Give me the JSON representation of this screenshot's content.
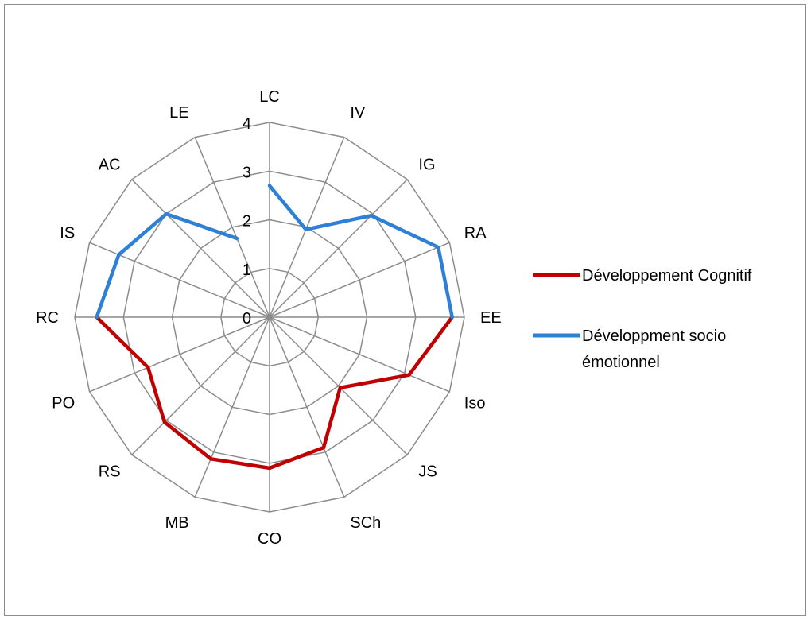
{
  "chart_data": {
    "type": "radar",
    "title": "",
    "categories": [
      "LC",
      "IV",
      "IG",
      "RA",
      "EE",
      "Iso",
      "JS",
      "SCh",
      "CO",
      "MB",
      "RS",
      "PO",
      "RC",
      "IS",
      "AC",
      "LE"
    ],
    "rlim": [
      0,
      4
    ],
    "ticks": [
      0,
      1,
      2,
      3,
      4
    ],
    "grid": true,
    "legend_position": "right",
    "series": [
      {
        "name": "Développement Cognitif",
        "color": "#c00000",
        "values": [
          null,
          null,
          null,
          null,
          3.75,
          3.1,
          2.05,
          2.9,
          3.1,
          3.15,
          3.05,
          2.7,
          3.55,
          null,
          null,
          null
        ]
      },
      {
        "name": "Développment socio émotionnel",
        "color": "#2e7fd6",
        "values": [
          2.7,
          1.95,
          2.95,
          3.75,
          3.75,
          null,
          null,
          null,
          null,
          null,
          null,
          null,
          3.55,
          3.35,
          3.0,
          1.75
        ]
      }
    ]
  },
  "legend": {
    "items": [
      {
        "lines": [
          "Développement Cognitif"
        ]
      },
      {
        "lines": [
          "Développment socio",
          "émotionnel"
        ]
      }
    ]
  }
}
